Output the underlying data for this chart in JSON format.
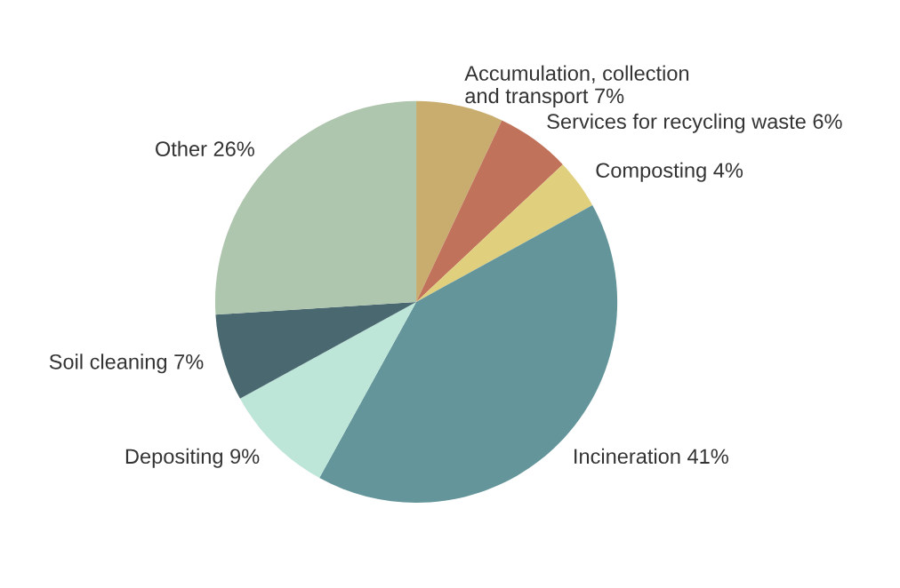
{
  "chart_data": {
    "type": "pie",
    "categories": [
      "Accumulation, collection\nand transport",
      "Services for recycling waste",
      "Composting",
      "Incineration",
      "Depositing",
      "Soil cleaning",
      "Other"
    ],
    "values": [
      7,
      6,
      4,
      41,
      9,
      7,
      26
    ],
    "value_labels": [
      "7%",
      "6%",
      "4%",
      "41%",
      "9%",
      "7%",
      "26%"
    ],
    "colors": [
      "#c8ad6e",
      "#c0735a",
      "#e0d07e",
      "#64959a",
      "#bde6d8",
      "#4a6870",
      "#aec5ae"
    ]
  }
}
